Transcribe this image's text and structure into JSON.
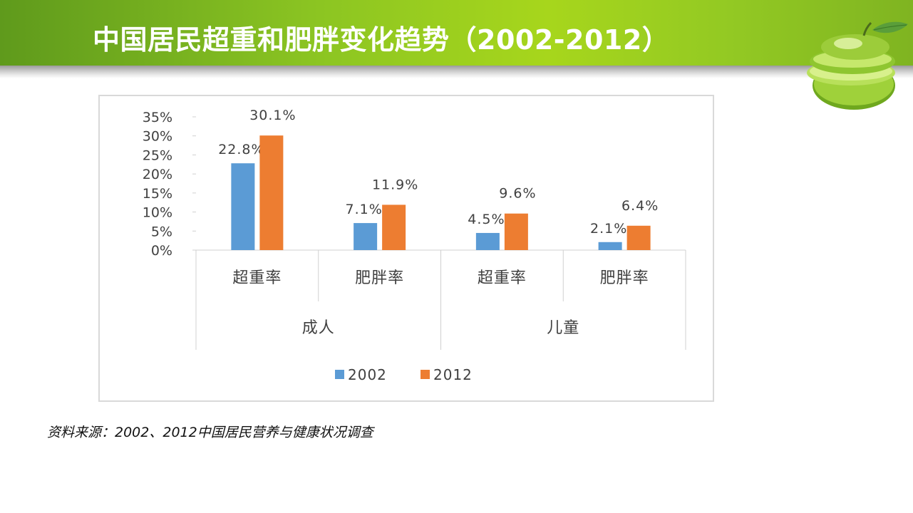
{
  "slide": {
    "title": "中国居民超重和肥胖变化趋势（2002-2012）",
    "source_note": "资料来源：2002、2012中国居民营养与健康状况调查"
  },
  "colors": {
    "series_2002": "#5b9bd5",
    "series_2012": "#ed7d31",
    "header_green": "#8cc522"
  },
  "chart_data": {
    "type": "bar",
    "title": "",
    "xlabel": "",
    "ylabel": "",
    "ylim": [
      0,
      35
    ],
    "yticks": [
      "0%",
      "5%",
      "10%",
      "15%",
      "20%",
      "25%",
      "30%",
      "35%"
    ],
    "groups": [
      "成人",
      "儿童"
    ],
    "categories": [
      "超重率",
      "肥胖率",
      "超重率",
      "肥胖率"
    ],
    "category_group": [
      0,
      0,
      1,
      1
    ],
    "series": [
      {
        "name": "2002",
        "values": [
          22.8,
          7.1,
          4.5,
          2.1
        ],
        "labels": [
          "22.8%",
          "7.1%",
          "4.5%",
          "2.1%"
        ]
      },
      {
        "name": "2012",
        "values": [
          30.1,
          11.9,
          9.6,
          6.4
        ],
        "labels": [
          "30.1%",
          "11.9%",
          "9.6%",
          "6.4%"
        ]
      }
    ],
    "legend_position": "bottom",
    "grid": false
  }
}
